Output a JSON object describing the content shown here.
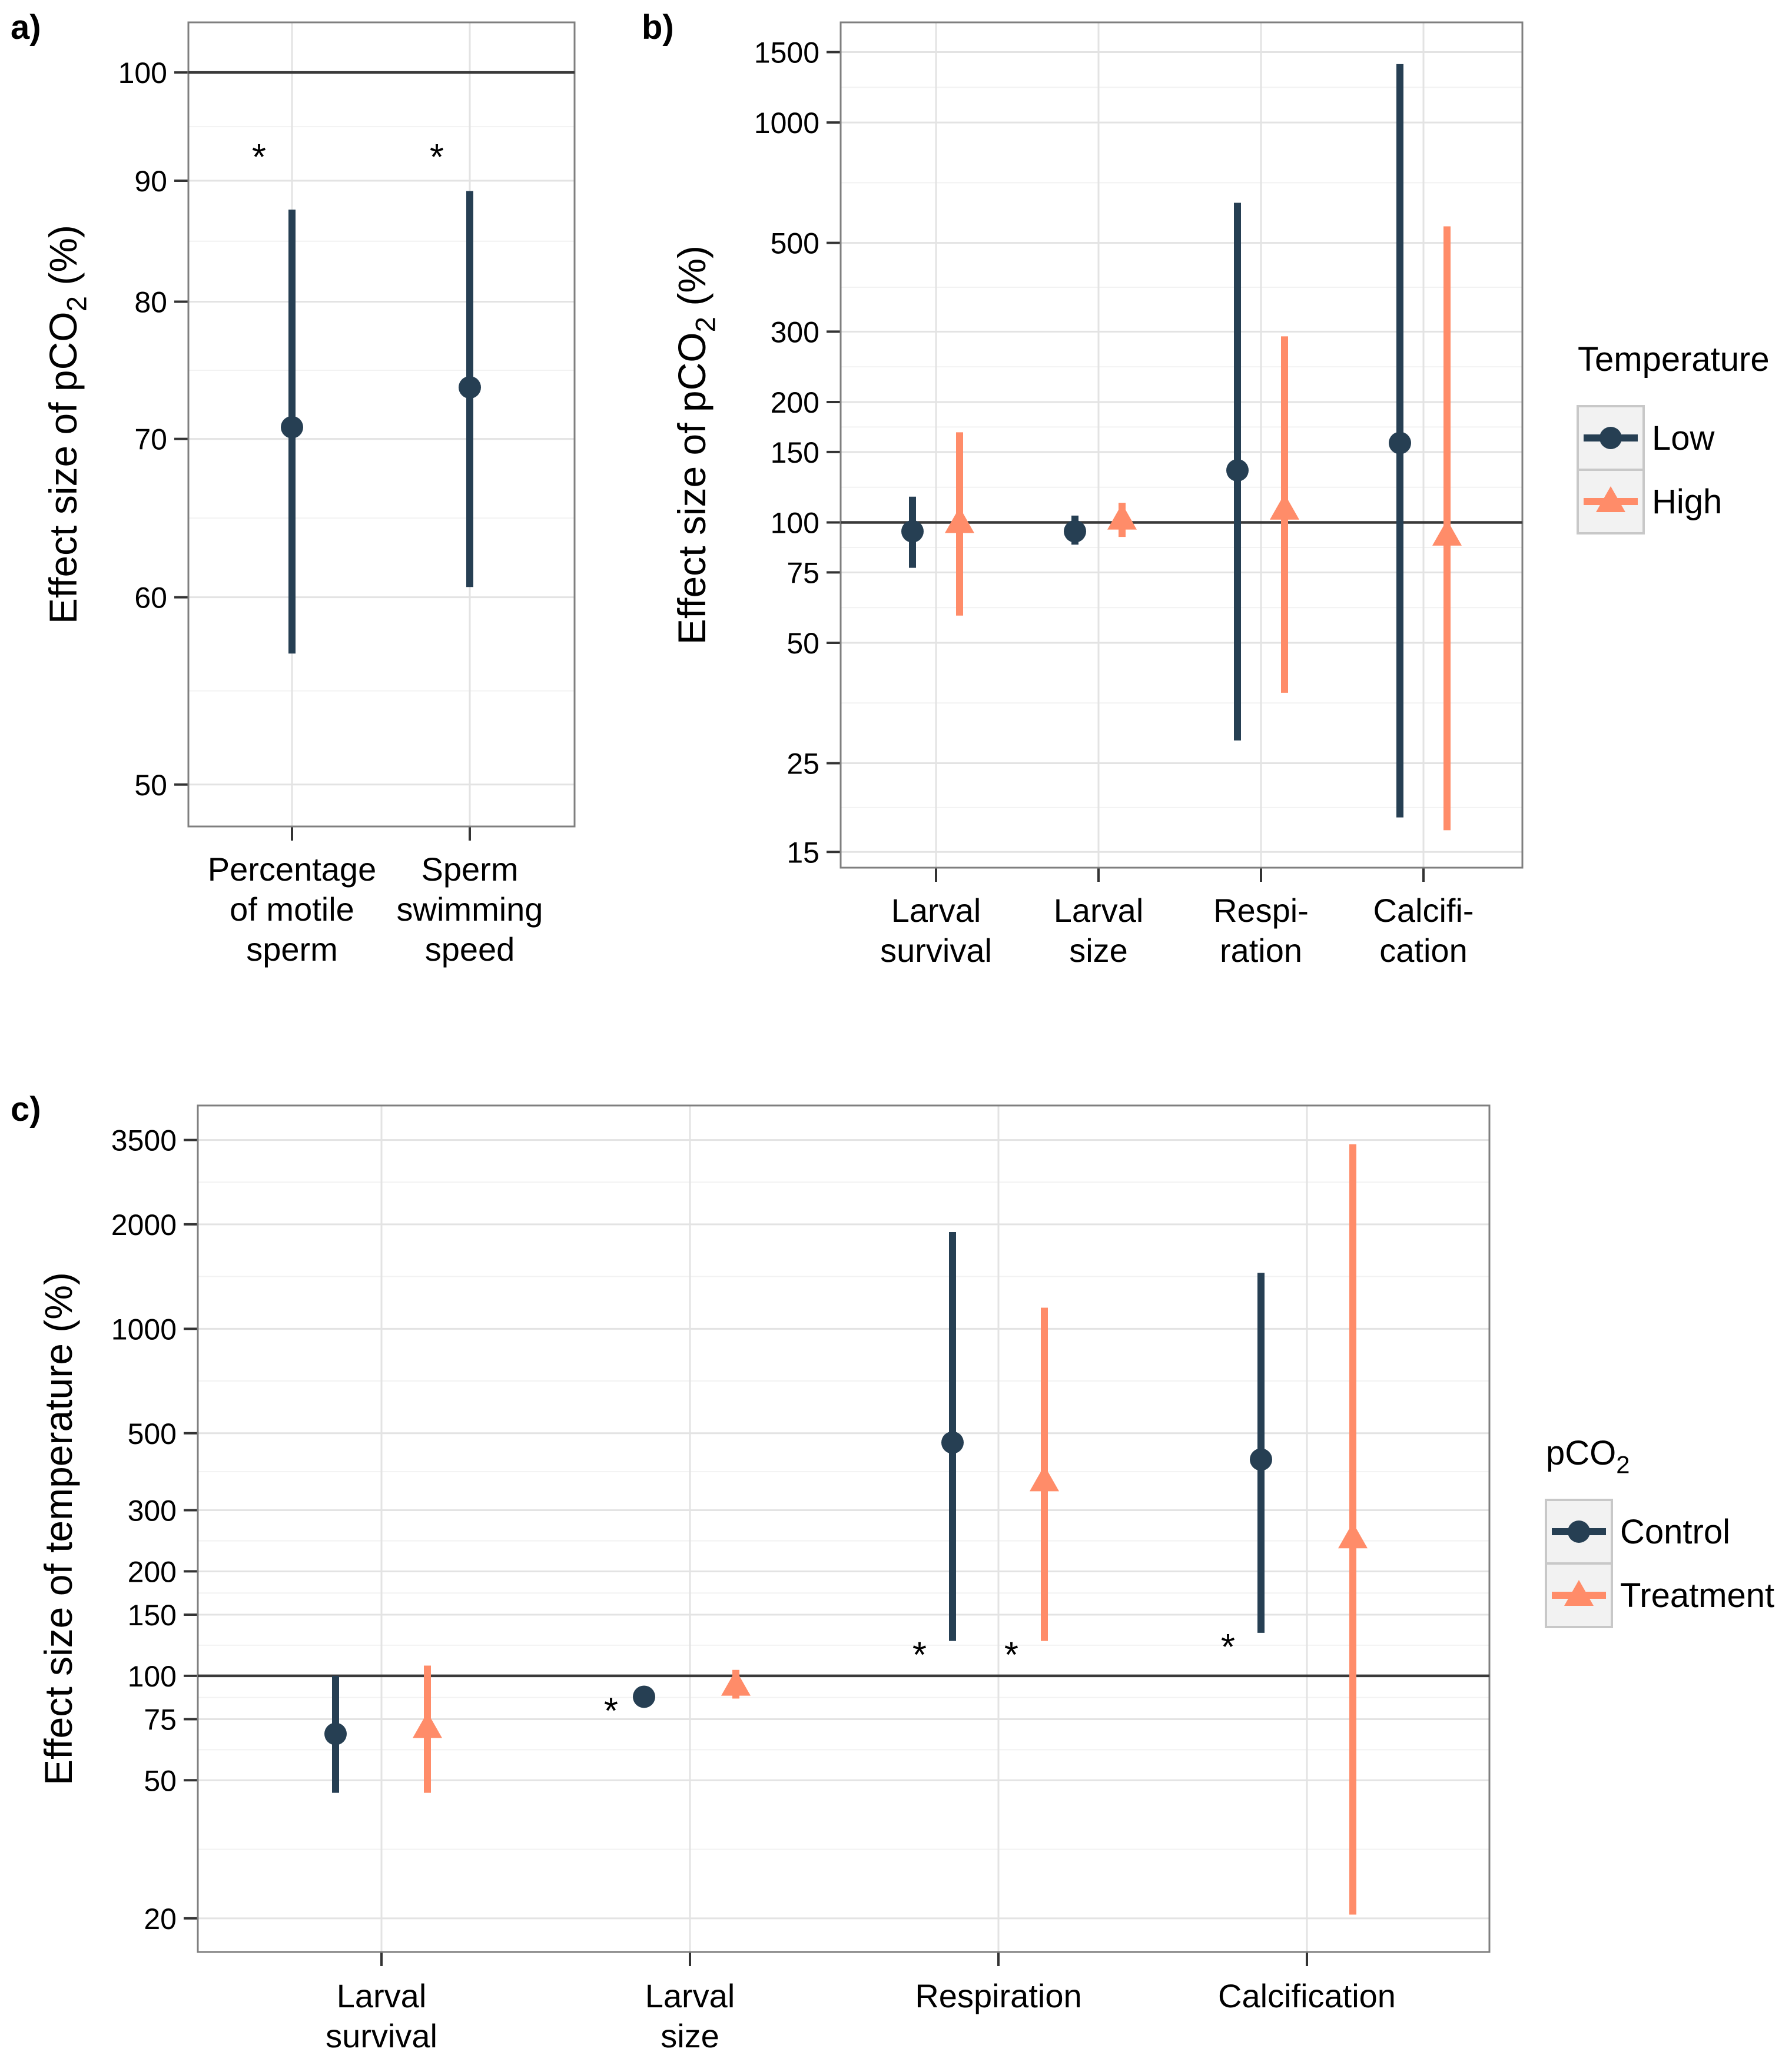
{
  "chart_data": [
    {
      "panel": "a",
      "panel_label": "a)",
      "type": "scatter",
      "subtype": "point-range",
      "ylabel_main": "Effect size of pCO",
      "ylabel_sub": "2",
      "ylabel_suffix": " (%)",
      "yscale": "log",
      "ylim": [
        48,
        105
      ],
      "yticks": [
        50,
        60,
        70,
        80,
        90,
        100
      ],
      "reference_line": 100,
      "grid": true,
      "categories": [
        {
          "lines": [
            "Percentage",
            "of motile",
            "sperm"
          ]
        },
        {
          "lines": [
            "Sperm",
            "swimming",
            "speed"
          ]
        }
      ],
      "series": [
        {
          "marker": "circle",
          "color": "#263f53",
          "points": [
            {
              "category": 0,
              "y": 70.8,
              "lo": 56.8,
              "hi": 87.5,
              "annotation": "*"
            },
            {
              "category": 1,
              "y": 73.6,
              "lo": 60.6,
              "hi": 89.1,
              "annotation": "*"
            }
          ]
        }
      ]
    },
    {
      "panel": "b",
      "panel_label": "b)",
      "type": "scatter",
      "subtype": "point-range",
      "ylabel_main": "Effect size of pCO",
      "ylabel_sub": "2",
      "ylabel_suffix": " (%)",
      "yscale": "log",
      "ylim": [
        13.7,
        1780
      ],
      "yticks": [
        15,
        25,
        50,
        75,
        100,
        150,
        200,
        300,
        500,
        1000,
        1500
      ],
      "reference_line": 100,
      "grid": true,
      "categories": [
        {
          "lines": [
            "Larval",
            "survival"
          ]
        },
        {
          "lines": [
            "Larval",
            "size"
          ]
        },
        {
          "lines": [
            "Respi-",
            "ration"
          ]
        },
        {
          "lines": [
            "Calcifi-",
            "cation"
          ]
        }
      ],
      "legend": {
        "title_main": "Temperature",
        "title_sub": "",
        "position": "right",
        "entries": [
          "Low",
          "High"
        ]
      },
      "series": [
        {
          "name": "Low",
          "marker": "circle",
          "color": "#263f53",
          "points": [
            {
              "category": 0,
              "y": 95,
              "lo": 77,
              "hi": 116
            },
            {
              "category": 1,
              "y": 95,
              "lo": 88,
              "hi": 104
            },
            {
              "category": 2,
              "y": 135,
              "lo": 28.5,
              "hi": 630
            },
            {
              "category": 3,
              "y": 158,
              "lo": 18.3,
              "hi": 1400
            }
          ]
        },
        {
          "name": "High",
          "marker": "triangle",
          "color": "#ff8c69",
          "points": [
            {
              "category": 0,
              "y": 100,
              "lo": 58.5,
              "hi": 168
            },
            {
              "category": 1,
              "y": 102,
              "lo": 92,
              "hi": 112
            },
            {
              "category": 2,
              "y": 108,
              "lo": 37.5,
              "hi": 292
            },
            {
              "category": 3,
              "y": 93,
              "lo": 17,
              "hi": 550
            }
          ]
        }
      ]
    },
    {
      "panel": "c",
      "panel_label": "c)",
      "type": "scatter",
      "subtype": "point-range",
      "ylabel_main": "Effect size of temperature (%)",
      "ylabel_sub": "",
      "ylabel_suffix": "",
      "yscale": "log",
      "ylim": [
        16,
        4400
      ],
      "yticks": [
        20,
        50,
        75,
        100,
        150,
        200,
        300,
        500,
        1000,
        2000,
        3500
      ],
      "reference_line": 100,
      "grid": true,
      "categories": [
        {
          "lines": [
            "Larval",
            "survival"
          ]
        },
        {
          "lines": [
            "Larval",
            "size"
          ]
        },
        {
          "lines": [
            "Respiration"
          ]
        },
        {
          "lines": [
            "Calcification"
          ]
        }
      ],
      "legend": {
        "title_main": "pCO",
        "title_sub": "2",
        "position": "right",
        "entries": [
          "Control",
          "Treatment"
        ]
      },
      "series": [
        {
          "name": "Control",
          "marker": "circle",
          "color": "#263f53",
          "points": [
            {
              "category": 0,
              "y": 68,
              "lo": 46,
              "hi": 100
            },
            {
              "category": 1,
              "y": 87,
              "lo": null,
              "hi": null,
              "annotation": "*"
            },
            {
              "category": 2,
              "y": 470,
              "lo": 126,
              "hi": 1900,
              "annotation": "*"
            },
            {
              "category": 3,
              "y": 420,
              "lo": 133,
              "hi": 1450,
              "annotation": "*"
            }
          ]
        },
        {
          "name": "Treatment",
          "marker": "triangle",
          "color": "#ff8c69",
          "points": [
            {
              "category": 0,
              "y": 71,
              "lo": 46,
              "hi": 107
            },
            {
              "category": 1,
              "y": 94,
              "lo": 86,
              "hi": 104
            },
            {
              "category": 2,
              "y": 365,
              "lo": 126,
              "hi": 1150,
              "annotation": "*"
            },
            {
              "category": 3,
              "y": 250,
              "lo": 20.5,
              "hi": 3400
            }
          ]
        }
      ]
    }
  ]
}
